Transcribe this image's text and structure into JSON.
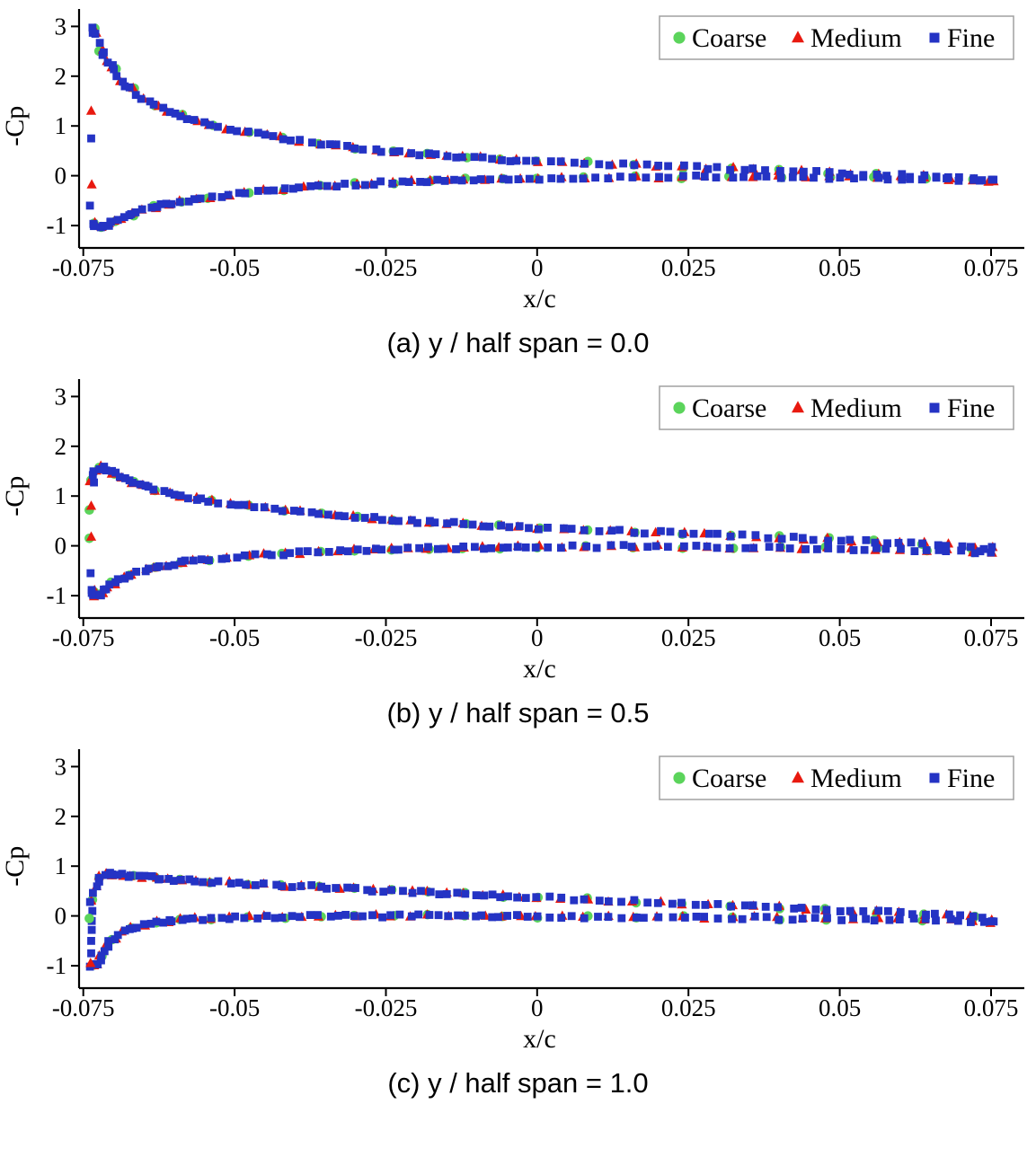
{
  "figure": {
    "background": "#ffffff"
  },
  "legend": {
    "items": [
      {
        "label": "Coarse",
        "marker": "circle",
        "color": "#5BD45B"
      },
      {
        "label": "Medium",
        "marker": "triangle",
        "color": "#E8190F"
      },
      {
        "label": "Fine",
        "marker": "square",
        "color": "#2433C4"
      }
    ]
  },
  "axes": {
    "xlabel": "x/c",
    "ylabel": "-Cp",
    "xlim": [
      -0.0757,
      0.0805
    ],
    "ylim": [
      -1.45,
      3.35
    ],
    "x_ticks": [
      -0.075,
      -0.05,
      -0.025,
      0,
      0.025,
      0.05,
      0.075
    ],
    "x_tick_labels": [
      "-0.075",
      "-0.05",
      "-0.025",
      "0",
      "0.025",
      "0.05",
      "0.075"
    ],
    "y_ticks": [
      -1,
      0,
      1,
      2,
      3
    ],
    "y_tick_labels": [
      "-1",
      "0",
      "1",
      "2",
      "3"
    ]
  },
  "style": {
    "jitter_x": 0.00045,
    "jitter_y": 0.03,
    "axis_color": "#000000",
    "legend_border": "#a0a0a0"
  },
  "chart_data": [
    {
      "type": "scatter",
      "caption": "(a) y / half span = 0.0",
      "xlabel": "x/c",
      "ylabel": "-Cp",
      "series": [
        "Coarse",
        "Medium",
        "Fine"
      ],
      "x": [
        -0.0735,
        -0.073,
        -0.072,
        -0.071,
        -0.07,
        -0.0685,
        -0.067,
        -0.065,
        -0.063,
        -0.061,
        -0.059,
        -0.0565,
        -0.054,
        -0.051,
        -0.048,
        -0.045,
        -0.042,
        -0.039,
        -0.036,
        -0.033,
        -0.03,
        -0.027,
        -0.024,
        -0.021,
        -0.018,
        -0.015,
        -0.012,
        -0.009,
        -0.006,
        -0.003,
        0.0,
        0.004,
        0.008,
        0.012,
        0.016,
        0.02,
        0.024,
        0.028,
        0.032,
        0.036,
        0.04,
        0.044,
        0.048,
        0.052,
        0.056,
        0.06,
        0.064,
        0.068,
        0.072,
        0.075
      ],
      "upper": [
        2.95,
        2.85,
        2.5,
        2.3,
        2.15,
        1.9,
        1.75,
        1.55,
        1.4,
        1.3,
        1.2,
        1.1,
        1.02,
        0.95,
        0.88,
        0.82,
        0.76,
        0.7,
        0.65,
        0.6,
        0.56,
        0.52,
        0.48,
        0.45,
        0.42,
        0.4,
        0.38,
        0.36,
        0.33,
        0.31,
        0.3,
        0.28,
        0.26,
        0.24,
        0.22,
        0.2,
        0.18,
        0.16,
        0.14,
        0.12,
        0.1,
        0.08,
        0.06,
        0.05,
        0.03,
        0.01,
        0.0,
        -0.03,
        -0.06,
        -0.1
      ],
      "lower": [
        -0.95,
        -1.0,
        -1.02,
        -0.98,
        -0.92,
        -0.85,
        -0.78,
        -0.7,
        -0.63,
        -0.57,
        -0.52,
        -0.47,
        -0.43,
        -0.38,
        -0.34,
        -0.3,
        -0.27,
        -0.24,
        -0.21,
        -0.19,
        -0.17,
        -0.15,
        -0.13,
        -0.12,
        -0.1,
        -0.09,
        -0.08,
        -0.07,
        -0.06,
        -0.06,
        -0.05,
        -0.05,
        -0.04,
        -0.04,
        -0.03,
        -0.03,
        -0.03,
        -0.02,
        -0.02,
        -0.02,
        -0.03,
        -0.03,
        -0.04,
        -0.04,
        -0.05,
        -0.05,
        -0.06,
        -0.07,
        -0.08,
        -0.1
      ],
      "extra_points": [
        [
          "Medium",
          -0.0737,
          1.3
        ],
        [
          "Fine",
          -0.0737,
          0.75
        ],
        [
          "Medium",
          -0.0736,
          -0.18
        ],
        [
          "Fine",
          -0.0739,
          -0.6
        ]
      ]
    },
    {
      "type": "scatter",
      "caption": "(b) y / half span = 0.5",
      "xlabel": "x/c",
      "ylabel": "-Cp",
      "series": [
        "Coarse",
        "Medium",
        "Fine"
      ],
      "x": [
        -0.0735,
        -0.073,
        -0.072,
        -0.071,
        -0.07,
        -0.0685,
        -0.067,
        -0.065,
        -0.063,
        -0.061,
        -0.059,
        -0.0565,
        -0.054,
        -0.051,
        -0.048,
        -0.045,
        -0.042,
        -0.039,
        -0.036,
        -0.033,
        -0.03,
        -0.027,
        -0.024,
        -0.021,
        -0.018,
        -0.015,
        -0.012,
        -0.009,
        -0.006,
        -0.003,
        0.0,
        0.004,
        0.008,
        0.012,
        0.016,
        0.02,
        0.024,
        0.028,
        0.032,
        0.036,
        0.04,
        0.044,
        0.048,
        0.052,
        0.056,
        0.06,
        0.064,
        0.068,
        0.072,
        0.075
      ],
      "upper": [
        1.3,
        1.5,
        1.58,
        1.52,
        1.45,
        1.35,
        1.28,
        1.2,
        1.13,
        1.07,
        1.01,
        0.95,
        0.9,
        0.85,
        0.8,
        0.76,
        0.72,
        0.68,
        0.65,
        0.62,
        0.59,
        0.56,
        0.53,
        0.5,
        0.48,
        0.46,
        0.44,
        0.42,
        0.4,
        0.38,
        0.36,
        0.34,
        0.32,
        0.3,
        0.28,
        0.27,
        0.25,
        0.23,
        0.21,
        0.19,
        0.17,
        0.15,
        0.13,
        0.11,
        0.09,
        0.07,
        0.05,
        0.02,
        -0.02,
        -0.05
      ],
      "lower": [
        -0.9,
        -1.0,
        -0.95,
        -0.85,
        -0.75,
        -0.65,
        -0.58,
        -0.5,
        -0.44,
        -0.39,
        -0.34,
        -0.3,
        -0.27,
        -0.24,
        -0.21,
        -0.18,
        -0.16,
        -0.14,
        -0.12,
        -0.11,
        -0.09,
        -0.08,
        -0.07,
        -0.06,
        -0.05,
        -0.05,
        -0.04,
        -0.04,
        -0.03,
        -0.03,
        -0.02,
        -0.02,
        -0.02,
        -0.01,
        -0.01,
        -0.01,
        -0.02,
        -0.02,
        -0.03,
        -0.03,
        -0.04,
        -0.04,
        -0.05,
        -0.06,
        -0.07,
        -0.08,
        -0.09,
        -0.1,
        -0.12,
        -0.15
      ],
      "extra_points": [
        [
          "Coarse",
          -0.074,
          0.72
        ],
        [
          "Coarse",
          -0.074,
          0.15
        ],
        [
          "Medium",
          -0.0737,
          0.8
        ],
        [
          "Medium",
          -0.0737,
          0.18
        ],
        [
          "Fine",
          -0.0738,
          -0.55
        ]
      ]
    },
    {
      "type": "scatter",
      "caption": "(c) y / half span = 1.0",
      "xlabel": "x/c",
      "ylabel": "-Cp",
      "series": [
        "Coarse",
        "Medium",
        "Fine"
      ],
      "x": [
        -0.0735,
        -0.073,
        -0.072,
        -0.071,
        -0.07,
        -0.0685,
        -0.067,
        -0.065,
        -0.063,
        -0.061,
        -0.059,
        -0.0565,
        -0.054,
        -0.051,
        -0.048,
        -0.045,
        -0.042,
        -0.039,
        -0.036,
        -0.033,
        -0.03,
        -0.027,
        -0.024,
        -0.021,
        -0.018,
        -0.015,
        -0.012,
        -0.009,
        -0.006,
        -0.003,
        0.0,
        0.004,
        0.008,
        0.012,
        0.016,
        0.02,
        0.024,
        0.028,
        0.032,
        0.036,
        0.04,
        0.044,
        0.048,
        0.052,
        0.056,
        0.06,
        0.064,
        0.068,
        0.072,
        0.075
      ],
      "upper": [
        0.3,
        0.6,
        0.78,
        0.85,
        0.84,
        0.82,
        0.8,
        0.78,
        0.76,
        0.74,
        0.72,
        0.71,
        0.69,
        0.67,
        0.65,
        0.63,
        0.61,
        0.6,
        0.58,
        0.56,
        0.54,
        0.52,
        0.51,
        0.49,
        0.47,
        0.45,
        0.44,
        0.42,
        0.4,
        0.39,
        0.37,
        0.35,
        0.33,
        0.31,
        0.29,
        0.27,
        0.25,
        0.23,
        0.21,
        0.19,
        0.17,
        0.15,
        0.13,
        0.11,
        0.09,
        0.06,
        0.04,
        0.01,
        -0.03,
        -0.08
      ],
      "lower": [
        -1.0,
        -0.95,
        -0.8,
        -0.6,
        -0.45,
        -0.32,
        -0.25,
        -0.18,
        -0.13,
        -0.1,
        -0.08,
        -0.06,
        -0.05,
        -0.04,
        -0.03,
        -0.02,
        -0.02,
        -0.01,
        -0.01,
        0.0,
        0.0,
        0.0,
        0.0,
        0.0,
        0.0,
        0.0,
        0.0,
        -0.01,
        -0.01,
        -0.01,
        -0.01,
        -0.01,
        -0.02,
        -0.02,
        -0.02,
        -0.03,
        -0.03,
        -0.03,
        -0.04,
        -0.04,
        -0.05,
        -0.05,
        -0.06,
        -0.06,
        -0.07,
        -0.08,
        -0.08,
        -0.09,
        -0.1,
        -0.12
      ],
      "extra_points": [
        [
          "Fine",
          -0.0737,
          -0.75
        ],
        [
          "Fine",
          -0.0737,
          -0.5
        ],
        [
          "Fine",
          -0.0736,
          -0.28
        ],
        [
          "Fine",
          -0.0736,
          -0.1
        ],
        [
          "Fine",
          -0.0735,
          0.1
        ],
        [
          "Coarse",
          -0.074,
          -0.05
        ],
        [
          "Medium",
          -0.0738,
          -0.95
        ]
      ]
    }
  ]
}
